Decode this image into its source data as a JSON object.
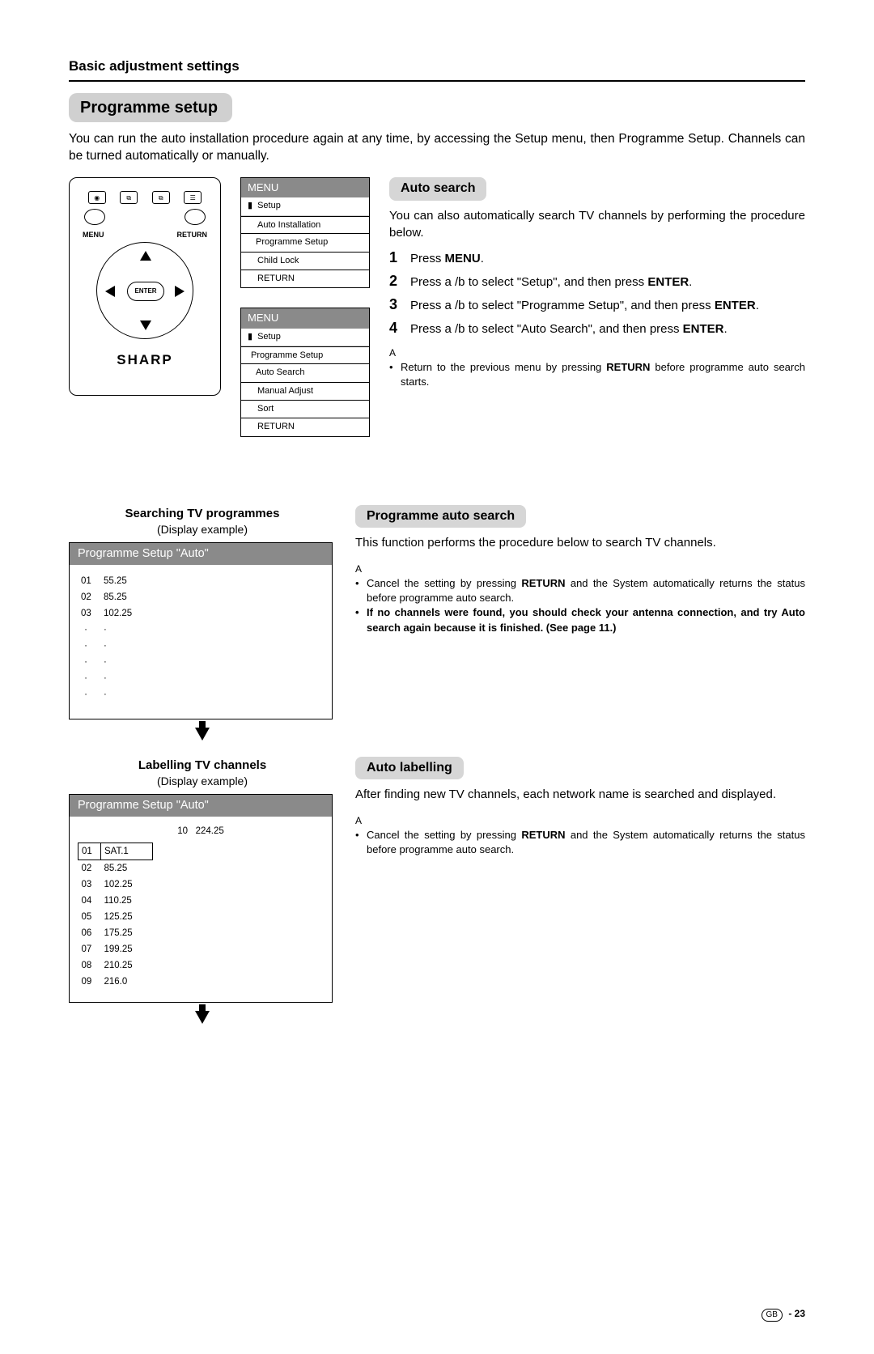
{
  "section_label": "Basic adjustment settings",
  "page_title": "Programme setup",
  "intro": "You can run the auto installation procedure again at any time, by accessing the Setup menu, then Programme Setup. Channels can be turned automatically or manually.",
  "remote": {
    "menu_label": "MENU",
    "return_label": "RETURN",
    "enter_label": "ENTER",
    "brand": "SHARP"
  },
  "menu1": {
    "title": "MENU",
    "setup": "Setup",
    "items": [
      "Auto Installation",
      "Programme Setup",
      "Child Lock",
      "RETURN"
    ],
    "selected_index": 1
  },
  "menu2": {
    "title": "MENU",
    "setup": "Setup",
    "sub": "Programme Setup",
    "items": [
      "Auto Search",
      "Manual Adjust",
      "Sort",
      "RETURN"
    ],
    "selected_index": 0
  },
  "auto_search": {
    "heading": "Auto search",
    "lead": "You can also automatically search TV channels by performing the procedure below.",
    "steps": [
      {
        "n": "1",
        "pre": "Press ",
        "b": "MENU",
        "post": "."
      },
      {
        "n": "2",
        "pre": "Press a /b  to select \"Setup\", and then press ",
        "b": "ENTER",
        "post": "."
      },
      {
        "n": "3",
        "pre": "Press a /b  to select \"Programme Setup\", and then press ",
        "b": "ENTER",
        "post": "."
      },
      {
        "n": "4",
        "pre": "Press a /b  to select \"Auto Search\", and then press ",
        "b": "ENTER",
        "post": "."
      }
    ],
    "note_hd": "A",
    "note_pre": "Return to the previous menu by pressing ",
    "note_b": "RETURN",
    "note_post": " before programme auto search starts."
  },
  "searching": {
    "heading": "Searching TV programmes",
    "caption": "(Display example)",
    "box_title": "Programme Setup \"Auto\"",
    "rows": [
      {
        "n": "01",
        "v": "55.25"
      },
      {
        "n": "02",
        "v": "85.25"
      },
      {
        "n": "03",
        "v": "102.25"
      }
    ]
  },
  "pas": {
    "heading": "Programme auto search",
    "lead": "This function performs the procedure below to search TV channels.",
    "note_hd": "A",
    "note1_pre": "Cancel the setting by pressing ",
    "note1_b": "RETURN",
    "note1_post": " and the System automatically returns the status before programme auto search.",
    "note2": "If no channels were found, you should check your antenna connection, and try Auto search again because it is finished. (See page 11.)"
  },
  "labelling": {
    "heading": "Labelling TV channels",
    "caption": "(Display example)",
    "box_title": "Programme Setup \"Auto\"",
    "top_n": "10",
    "top_v": "224.25",
    "rows": [
      {
        "n": "01",
        "v": "SAT.1"
      },
      {
        "n": "02",
        "v": "85.25"
      },
      {
        "n": "03",
        "v": "102.25"
      },
      {
        "n": "04",
        "v": "110.25"
      },
      {
        "n": "05",
        "v": "125.25"
      },
      {
        "n": "06",
        "v": "175.25"
      },
      {
        "n": "07",
        "v": "199.25"
      },
      {
        "n": "08",
        "v": "210.25"
      },
      {
        "n": "09",
        "v": "216.0"
      }
    ],
    "selected_index": 0
  },
  "auto_label": {
    "heading": "Auto labelling",
    "lead": "After finding new TV channels, each network name is searched and displayed.",
    "note_hd": "A",
    "note_pre": "Cancel the setting by pressing ",
    "note_b": "RETURN",
    "note_post": " and the System automatically returns the status before programme auto search."
  },
  "footer": {
    "gb": "GB",
    "page": " - 23"
  }
}
